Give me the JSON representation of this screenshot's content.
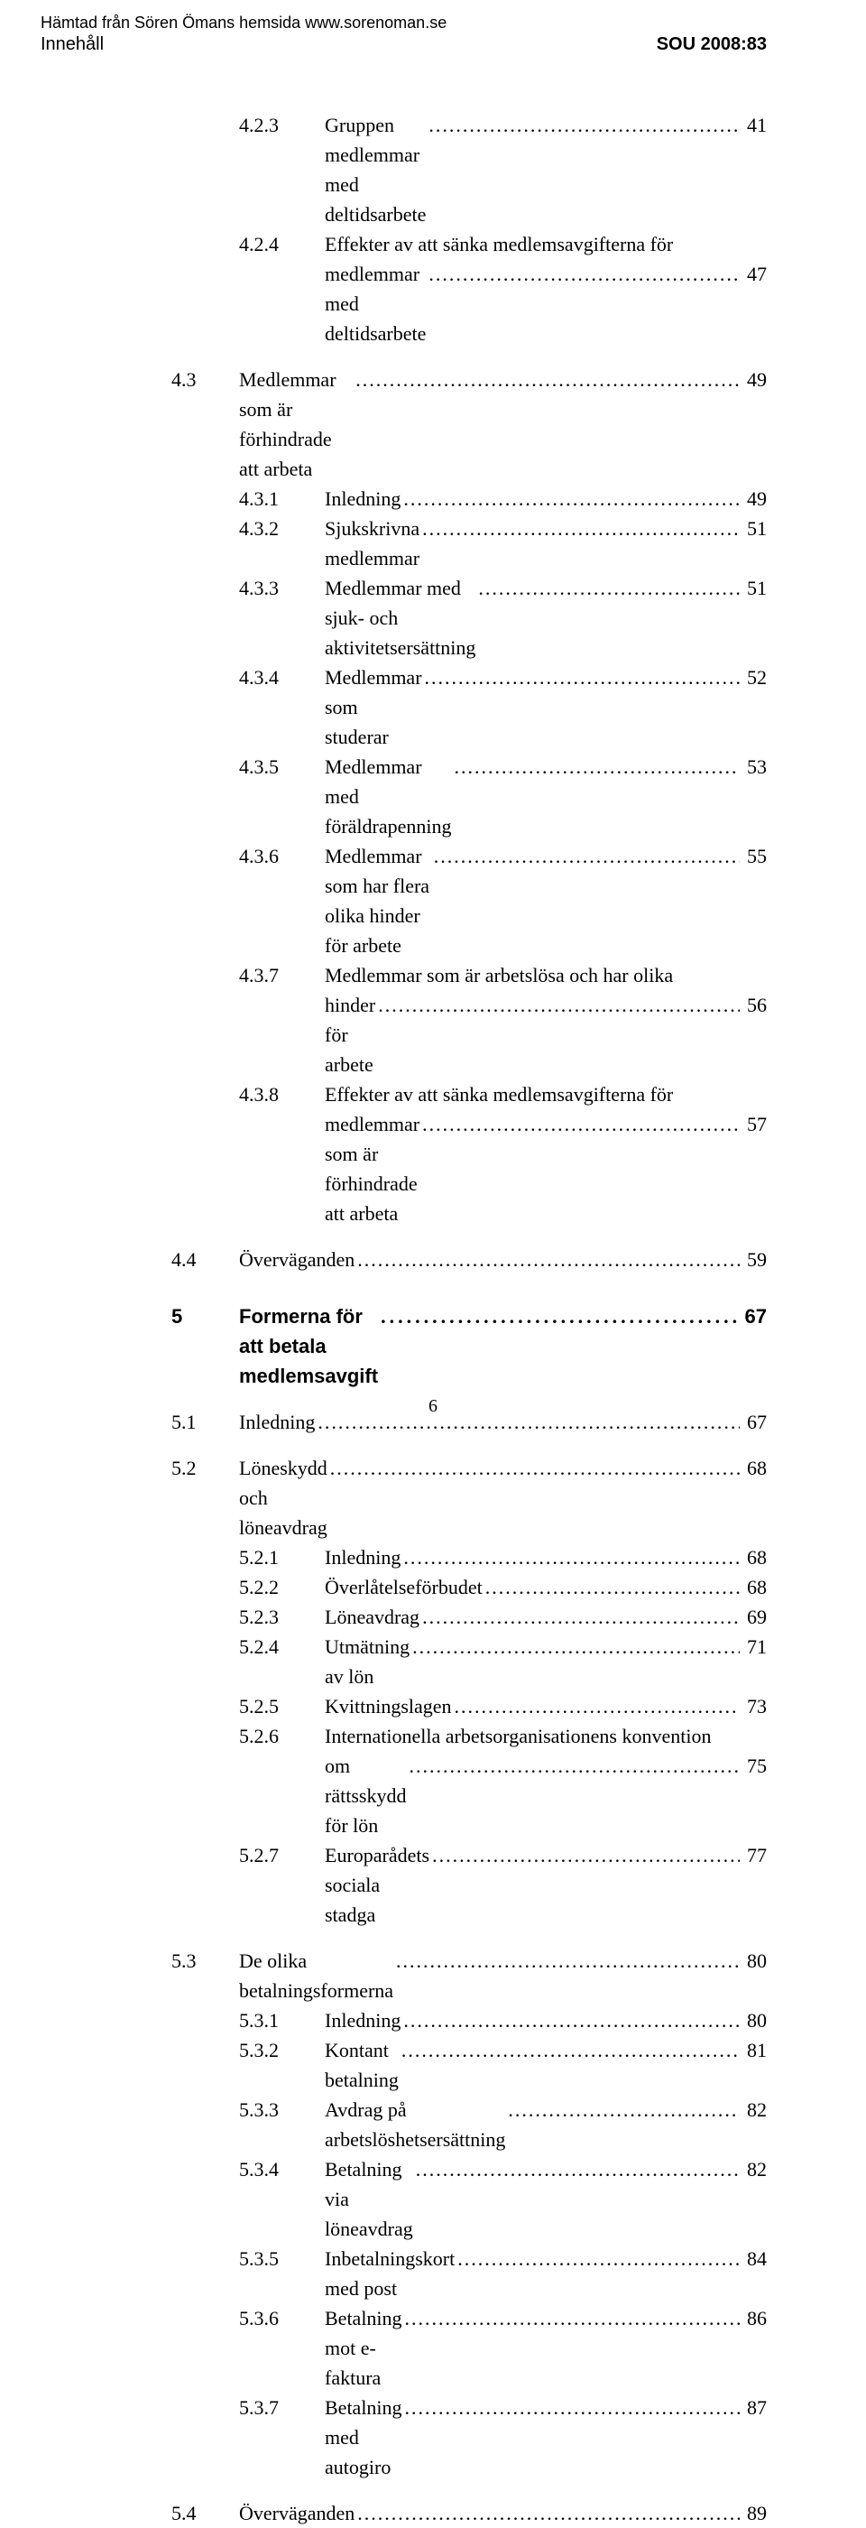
{
  "header": {
    "topnote": "Hämtad från Sören Ömans hemsida www.sorenoman.se",
    "left": "Innehåll",
    "right": "SOU 2008:83"
  },
  "toc": {
    "e1": {
      "num": "4.2.3",
      "label": "Gruppen medlemmar med deltidsarbete",
      "page": "41"
    },
    "e2a": {
      "num": "4.2.4",
      "label": "Effekter av att sänka medlemsavgifterna för"
    },
    "e2b": {
      "label": "medlemmar med deltidsarbete",
      "page": "47"
    },
    "e3": {
      "num": "4.3",
      "label": "Medlemmar som är förhindrade att arbeta",
      "page": "49"
    },
    "e4": {
      "num": "4.3.1",
      "label": "Inledning",
      "page": "49"
    },
    "e5": {
      "num": "4.3.2",
      "label": "Sjukskrivna medlemmar",
      "page": "51"
    },
    "e6": {
      "num": "4.3.3",
      "label": "Medlemmar med sjuk- och aktivitetsersättning",
      "page": "51"
    },
    "e7": {
      "num": "4.3.4",
      "label": "Medlemmar som studerar",
      "page": "52"
    },
    "e8": {
      "num": "4.3.5",
      "label": "Medlemmar med föräldrapenning",
      "page": "53"
    },
    "e9": {
      "num": "4.3.6",
      "label": "Medlemmar som har flera olika hinder för arbete",
      "page": "55"
    },
    "e10a": {
      "num": "4.3.7",
      "label": "Medlemmar som är arbetslösa och har olika"
    },
    "e10b": {
      "label": "hinder för arbete",
      "page": "56"
    },
    "e11a": {
      "num": "4.3.8",
      "label": "Effekter av att sänka medlemsavgifterna för"
    },
    "e11b": {
      "label": "medlemmar som är förhindrade att arbeta",
      "page": "57"
    },
    "e12": {
      "num": "4.4",
      "label": "Överväganden",
      "page": "59"
    },
    "e13": {
      "num": "5",
      "label": "Formerna för att betala medlemsavgift",
      "page": "67"
    },
    "e14": {
      "num": "5.1",
      "label": "Inledning",
      "page": "67"
    },
    "e15": {
      "num": "5.2",
      "label": "Löneskydd och löneavdrag",
      "page": "68"
    },
    "e16": {
      "num": "5.2.1",
      "label": "Inledning",
      "page": "68"
    },
    "e17": {
      "num": "5.2.2",
      "label": "Överlåtelseförbudet",
      "page": "68"
    },
    "e18": {
      "num": "5.2.3",
      "label": "Löneavdrag",
      "page": "69"
    },
    "e19": {
      "num": "5.2.4",
      "label": "Utmätning av lön",
      "page": "71"
    },
    "e20": {
      "num": "5.2.5",
      "label": "Kvittningslagen",
      "page": "73"
    },
    "e21a": {
      "num": "5.2.6",
      "label": "Internationella arbetsorganisationens konvention"
    },
    "e21b": {
      "label": "om rättsskydd för lön",
      "page": "75"
    },
    "e22": {
      "num": "5.2.7",
      "label": "Europarådets sociala stadga",
      "page": "77"
    },
    "e23": {
      "num": "5.3",
      "label": "De olika betalningsformerna",
      "page": "80"
    },
    "e24": {
      "num": "5.3.1",
      "label": "Inledning",
      "page": "80"
    },
    "e25": {
      "num": "5.3.2",
      "label": "Kontant betalning",
      "page": "81"
    },
    "e26": {
      "num": "5.3.3",
      "label": "Avdrag på arbetslöshetsersättning",
      "page": "82"
    },
    "e27": {
      "num": "5.3.4",
      "label": "Betalning via löneavdrag",
      "page": "82"
    },
    "e28": {
      "num": "5.3.5",
      "label": "Inbetalningskort med post",
      "page": "84"
    },
    "e29": {
      "num": "5.3.6",
      "label": "Betalning mot e-faktura",
      "page": "86"
    },
    "e30": {
      "num": "5.3.7",
      "label": "Betalning med autogiro",
      "page": "87"
    },
    "e31": {
      "num": "5.4",
      "label": "Överväganden",
      "page": "89"
    }
  },
  "pagenum": "6"
}
